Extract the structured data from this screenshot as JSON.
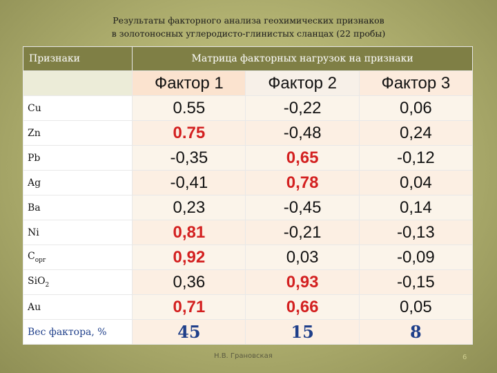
{
  "title": {
    "line1": "Результаты факторного анализа геохимических признаков",
    "line2": "в золотоносных углеродисто-глинистых сланцах (22 пробы)"
  },
  "table": {
    "header_left": "Признаки",
    "header_right": "Матрица факторных нагрузок на признаки",
    "factor_headers": [
      "Фактор 1",
      "Фактор 2",
      "Фактор 3"
    ],
    "rows": [
      {
        "label": "Cu",
        "values": [
          "0.55",
          "-0,22",
          "0,06"
        ],
        "highlight": [
          false,
          false,
          false
        ]
      },
      {
        "label": "Zn",
        "values": [
          "0.75",
          "-0,48",
          "0,24"
        ],
        "highlight": [
          true,
          false,
          false
        ]
      },
      {
        "label": "Pb",
        "values": [
          "-0,35",
          "0,65",
          "-0,12"
        ],
        "highlight": [
          false,
          true,
          false
        ]
      },
      {
        "label": "Ag",
        "values": [
          "-0,41",
          "0,78",
          "0,04"
        ],
        "highlight": [
          false,
          true,
          false
        ]
      },
      {
        "label": "Ba",
        "values": [
          "0,23",
          "-0,45",
          "0,14"
        ],
        "highlight": [
          false,
          false,
          false
        ]
      },
      {
        "label": "Ni",
        "values": [
          "0,81",
          "-0,21",
          "-0,13"
        ],
        "highlight": [
          true,
          false,
          false
        ]
      },
      {
        "label": "Cорг",
        "label_main": "C",
        "label_sub": "орг",
        "values": [
          "0,92",
          "0,03",
          "-0,09"
        ],
        "highlight": [
          true,
          false,
          false
        ]
      },
      {
        "label": "SiO2",
        "label_main": "SiO",
        "label_sub": "2",
        "values": [
          "0,36",
          "0,93",
          "-0,15"
        ],
        "highlight": [
          false,
          true,
          false
        ]
      },
      {
        "label": "Au",
        "values": [
          "0,71",
          "0,66",
          "0,05"
        ],
        "highlight": [
          true,
          true,
          false
        ]
      }
    ],
    "weight_row": {
      "label": "Вес фактора, %",
      "values": [
        "45",
        "15",
        "8"
      ]
    }
  },
  "footer": {
    "author": "Н.В. Грановская",
    "page": "6"
  },
  "colors": {
    "header_bg": "#7f7f45",
    "highlight": "#d32020",
    "weight": "#1f3f8a"
  }
}
